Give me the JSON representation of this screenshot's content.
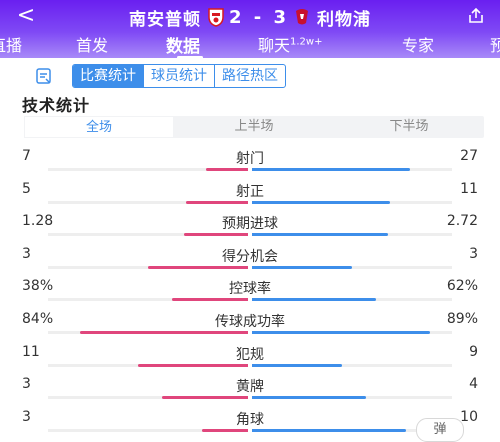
{
  "header": {
    "back_label": "<",
    "home_team": "南安普顿",
    "score": "2 - 3",
    "away_team": "利物浦"
  },
  "nav": {
    "tabs": [
      {
        "label": "直播"
      },
      {
        "label": "首发"
      },
      {
        "label": "数据"
      },
      {
        "label": "聊天"
      },
      {
        "label": "专家"
      },
      {
        "label": "预"
      }
    ],
    "chat_count": "1.2w+",
    "active": "数据"
  },
  "subnav": {
    "segments": [
      "比赛统计",
      "球员统计",
      "路径热区"
    ],
    "active": "比赛统计"
  },
  "section_title": "技术统计",
  "periods": {
    "items": [
      "全场",
      "上半场",
      "下半场"
    ],
    "active": "全场"
  },
  "colors": {
    "home": "#e0467c",
    "away": "#3d8eea",
    "accent": "#3d8eea",
    "header": "#6a1ff0"
  },
  "stats": [
    {
      "label": "射门",
      "home": "7",
      "away": "27",
      "home_share": 0.21,
      "away_share": 0.79
    },
    {
      "label": "射正",
      "home": "5",
      "away": "11",
      "home_share": 0.31,
      "away_share": 0.69
    },
    {
      "label": "预期进球",
      "home": "1.28",
      "away": "2.72",
      "home_share": 0.32,
      "away_share": 0.68
    },
    {
      "label": "得分机会",
      "home": "3",
      "away": "3",
      "home_share": 0.5,
      "away_share": 0.5
    },
    {
      "label": "控球率",
      "home": "38%",
      "away": "62%",
      "home_share": 0.38,
      "away_share": 0.62
    },
    {
      "label": "传球成功率",
      "home": "84%",
      "away": "89%",
      "home_share": 0.84,
      "away_share": 0.89
    },
    {
      "label": "犯规",
      "home": "11",
      "away": "9",
      "home_share": 0.55,
      "away_share": 0.45
    },
    {
      "label": "黄牌",
      "home": "3",
      "away": "4",
      "home_share": 0.43,
      "away_share": 0.57
    },
    {
      "label": "角球",
      "home": "3",
      "away": "10",
      "home_share": 0.23,
      "away_share": 0.77
    }
  ],
  "danmu_label": "弹"
}
